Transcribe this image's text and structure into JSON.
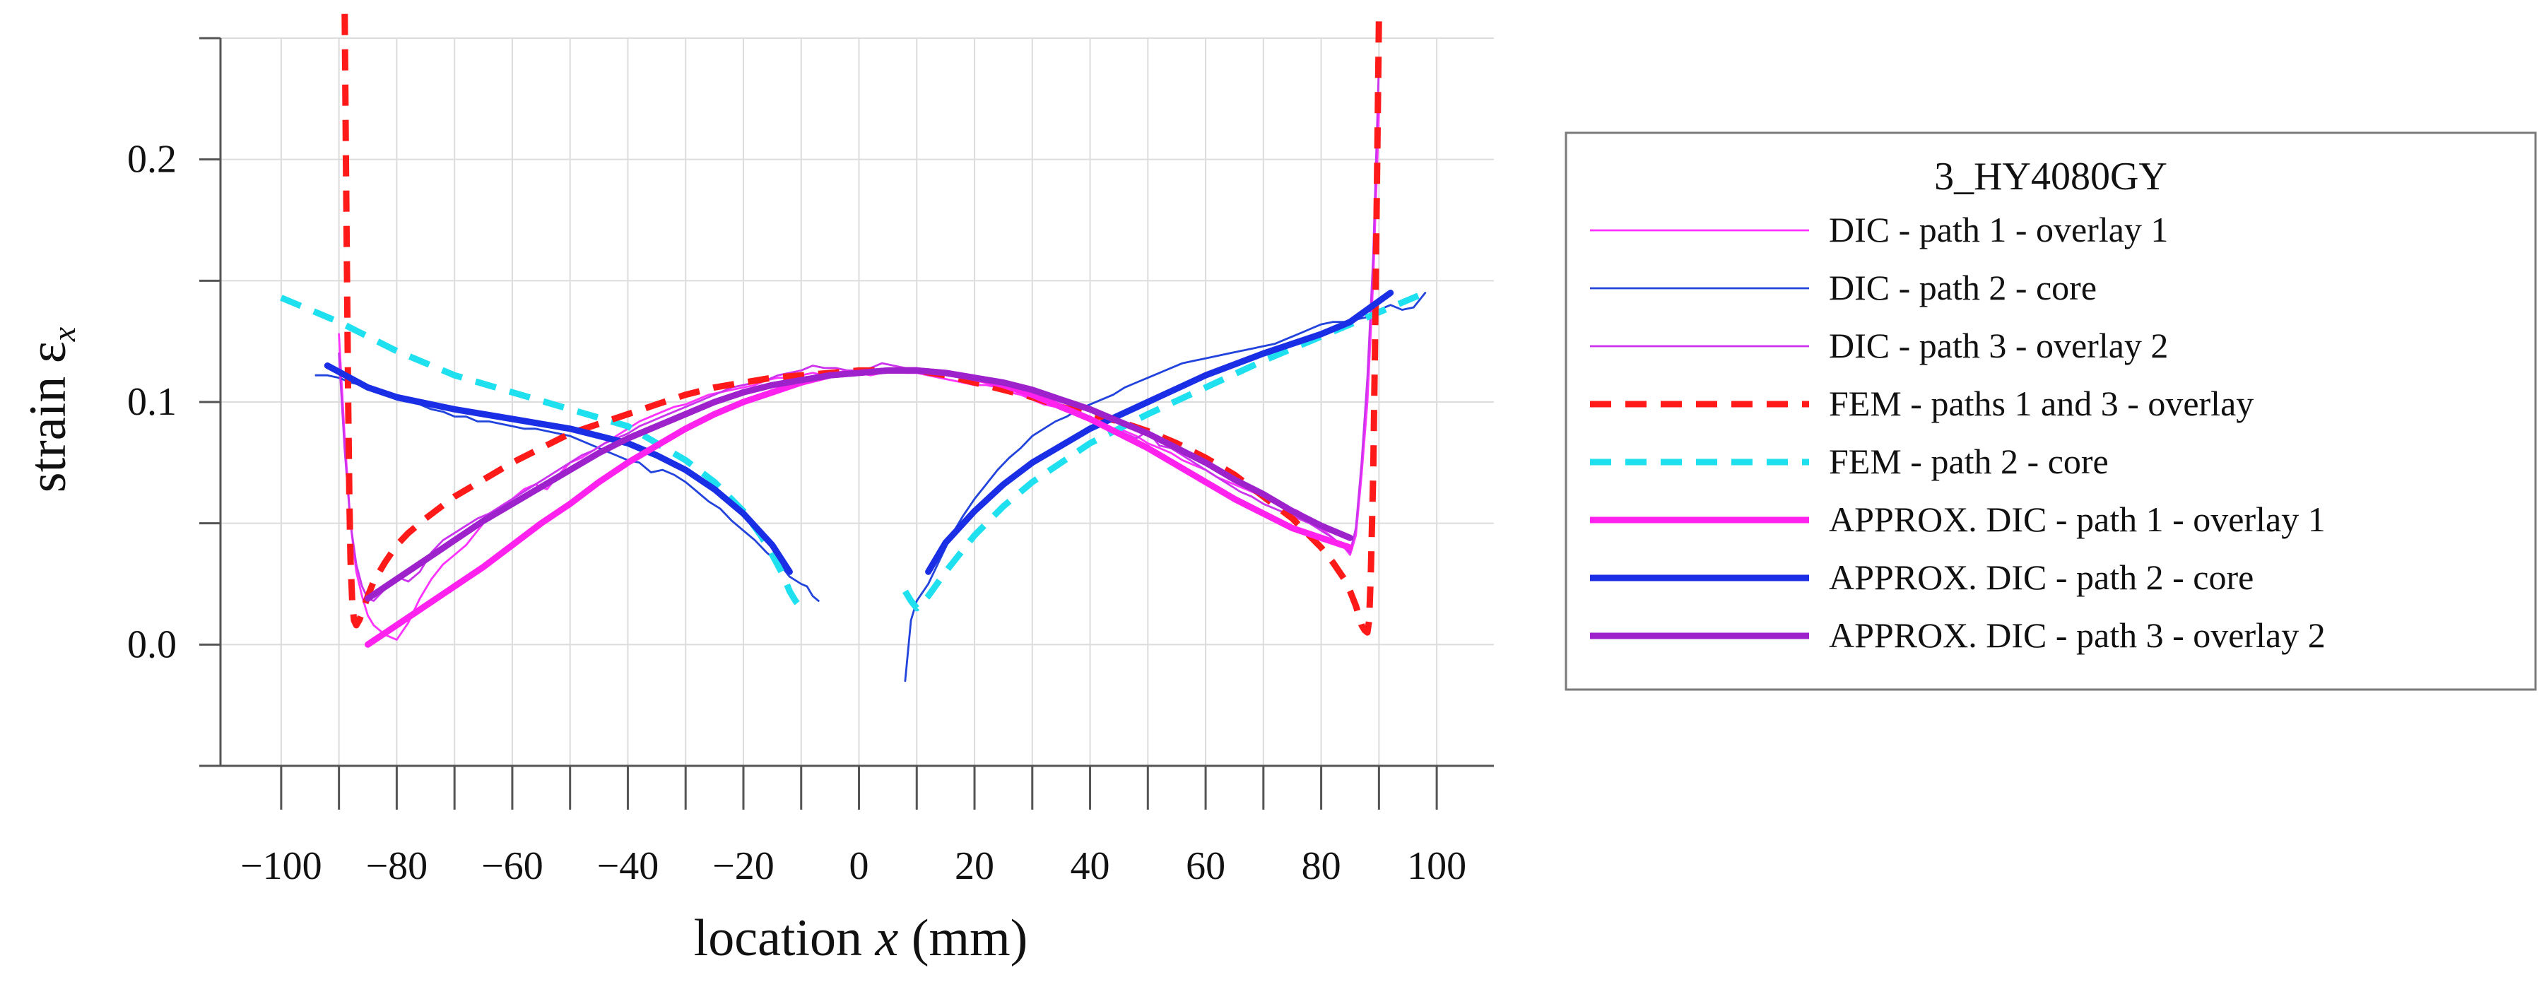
{
  "chart_data": {
    "type": "line",
    "title": "",
    "xlabel": "location x (mm)",
    "xlabel_parts": [
      "location ",
      "x",
      " (mm)"
    ],
    "ylabel": "strain εx",
    "ylabel_parts": [
      "strain ε",
      "x"
    ],
    "xlim": [
      -105,
      105
    ],
    "ylim": [
      -0.05,
      0.25
    ],
    "xticks": [
      -100,
      -80,
      -60,
      -40,
      -20,
      0,
      20,
      40,
      60,
      80,
      100
    ],
    "xtick_labels": [
      "−100",
      "−80",
      "−60",
      "−40",
      "−20",
      "0",
      "20",
      "40",
      "60",
      "80",
      "100"
    ],
    "yticks": [
      0.0,
      0.1,
      0.2
    ],
    "ytick_labels": [
      "0.0",
      "0.1",
      "0.2"
    ],
    "grid": true,
    "legend": {
      "position": "right",
      "title": "3_HY4080GY",
      "entries": [
        "DIC - path 1 - overlay 1",
        "DIC -  path 2 - core",
        "DIC - path 3 -  overlay 2",
        "FEM - paths 1 and 3 - overlay",
        "FEM -  path 2 - core",
        "APPROX. DIC - path 1 - overlay 1",
        "APPROX. DIC -  path 2 - core",
        "APPROX. DIC - path 3 -  overlay 2"
      ]
    },
    "series": [
      {
        "name": "DIC - path 1 - overlay 1",
        "color": "#ff33ff",
        "style": "thin",
        "x": [
          -90,
          -89,
          -88,
          -87,
          -86,
          -85,
          -84,
          -82,
          -80,
          -78,
          -76,
          -74,
          -72,
          -70,
          -68,
          -66,
          -64,
          -62,
          -60,
          -58,
          -56,
          -54,
          -52,
          -50,
          -48,
          -46,
          -44,
          -42,
          -40,
          -38,
          -36,
          -34,
          -32,
          -30,
          -28,
          -26,
          -24,
          -22,
          -20,
          -18,
          -16,
          -14,
          -12,
          -10,
          -8,
          -6,
          -4,
          -2,
          0,
          2,
          4,
          6,
          8,
          10,
          12,
          14,
          16,
          18,
          20,
          22,
          24,
          26,
          28,
          30,
          32,
          34,
          36,
          38,
          40,
          42,
          44,
          46,
          48,
          50,
          52,
          54,
          56,
          58,
          60,
          62,
          64,
          66,
          68,
          70,
          72,
          74,
          76,
          78,
          80,
          82,
          84,
          85,
          86,
          87,
          88,
          89,
          90
        ],
        "y": [
          0.128,
          0.085,
          0.05,
          0.03,
          0.02,
          0.012,
          0.008,
          0.004,
          0.002,
          0.009,
          0.019,
          0.027,
          0.033,
          0.037,
          0.041,
          0.047,
          0.053,
          0.057,
          0.06,
          0.064,
          0.066,
          0.064,
          0.07,
          0.075,
          0.077,
          0.08,
          0.083,
          0.086,
          0.089,
          0.092,
          0.094,
          0.096,
          0.098,
          0.099,
          0.101,
          0.103,
          0.104,
          0.105,
          0.106,
          0.107,
          0.109,
          0.11,
          0.11,
          0.111,
          0.112,
          0.111,
          0.112,
          0.113,
          0.112,
          0.111,
          0.112,
          0.113,
          0.112,
          0.112,
          0.111,
          0.11,
          0.109,
          0.108,
          0.107,
          0.107,
          0.106,
          0.104,
          0.103,
          0.101,
          0.099,
          0.098,
          0.096,
          0.095,
          0.093,
          0.09,
          0.089,
          0.088,
          0.086,
          0.083,
          0.081,
          0.079,
          0.076,
          0.074,
          0.072,
          0.069,
          0.067,
          0.065,
          0.063,
          0.061,
          0.059,
          0.057,
          0.055,
          0.052,
          0.048,
          0.044,
          0.04,
          0.037,
          0.045,
          0.07,
          0.1,
          0.15,
          0.22
        ]
      },
      {
        "name": "DIC -  path 2 - core",
        "color": "#2244dd",
        "style": "thin",
        "x": [
          -94,
          -92,
          -90,
          -88,
          -86,
          -84,
          -82,
          -80,
          -78,
          -76,
          -74,
          -72,
          -70,
          -68,
          -66,
          -64,
          -62,
          -60,
          -58,
          -56,
          -54,
          -52,
          -50,
          -48,
          -46,
          -44,
          -42,
          -40,
          -38,
          -36,
          -34,
          -32,
          -30,
          -28,
          -26,
          -24,
          -22,
          -20,
          -18,
          -16,
          -14,
          -12,
          -10,
          -9,
          -8,
          -7,
          8,
          9,
          10,
          12,
          14,
          16,
          18,
          20,
          22,
          24,
          26,
          28,
          30,
          32,
          34,
          36,
          38,
          40,
          42,
          44,
          46,
          48,
          50,
          52,
          54,
          56,
          58,
          60,
          62,
          64,
          66,
          68,
          70,
          72,
          74,
          76,
          78,
          80,
          82,
          84,
          86,
          88,
          90,
          92,
          94,
          96,
          98
        ],
        "y": [
          0.111,
          0.111,
          0.11,
          0.108,
          0.107,
          0.105,
          0.103,
          0.101,
          0.1,
          0.099,
          0.097,
          0.096,
          0.094,
          0.094,
          0.092,
          0.092,
          0.091,
          0.09,
          0.089,
          0.089,
          0.088,
          0.087,
          0.086,
          0.084,
          0.082,
          0.08,
          0.078,
          0.076,
          0.075,
          0.071,
          0.072,
          0.07,
          0.067,
          0.063,
          0.059,
          0.056,
          0.051,
          0.047,
          0.043,
          0.038,
          0.034,
          0.028,
          0.025,
          0.024,
          0.02,
          0.018,
          -0.015,
          0.01,
          0.018,
          0.025,
          0.035,
          0.045,
          0.053,
          0.06,
          0.066,
          0.072,
          0.077,
          0.081,
          0.086,
          0.089,
          0.092,
          0.094,
          0.097,
          0.099,
          0.101,
          0.103,
          0.106,
          0.108,
          0.11,
          0.112,
          0.114,
          0.116,
          0.117,
          0.118,
          0.119,
          0.12,
          0.121,
          0.122,
          0.123,
          0.124,
          0.126,
          0.128,
          0.13,
          0.132,
          0.133,
          0.133,
          0.134,
          0.135,
          0.138,
          0.14,
          0.138,
          0.139,
          0.145
        ]
      },
      {
        "name": "DIC - path 3 -  overlay 2",
        "color": "#cc33ee",
        "style": "thin",
        "x": [
          -90,
          -89,
          -88,
          -87,
          -86,
          -85,
          -84,
          -82,
          -80,
          -78,
          -76,
          -74,
          -72,
          -70,
          -68,
          -66,
          -64,
          -62,
          -60,
          -58,
          -56,
          -54,
          -52,
          -50,
          -48,
          -46,
          -44,
          -42,
          -40,
          -38,
          -36,
          -34,
          -32,
          -30,
          -28,
          -26,
          -24,
          -22,
          -20,
          -18,
          -16,
          -14,
          -12,
          -10,
          -8,
          -6,
          -4,
          -2,
          0,
          2,
          4,
          6,
          8,
          10,
          12,
          14,
          16,
          18,
          20,
          22,
          24,
          26,
          28,
          30,
          32,
          34,
          36,
          38,
          40,
          42,
          44,
          46,
          48,
          50,
          52,
          54,
          56,
          58,
          60,
          62,
          64,
          66,
          68,
          70,
          72,
          74,
          76,
          78,
          80,
          82,
          84,
          85,
          86,
          87,
          88,
          89,
          90
        ],
        "y": [
          0.12,
          0.08,
          0.05,
          0.033,
          0.024,
          0.019,
          0.018,
          0.023,
          0.028,
          0.026,
          0.03,
          0.038,
          0.043,
          0.046,
          0.049,
          0.052,
          0.054,
          0.057,
          0.06,
          0.063,
          0.066,
          0.069,
          0.072,
          0.075,
          0.078,
          0.08,
          0.083,
          0.085,
          0.087,
          0.09,
          0.092,
          0.094,
          0.096,
          0.098,
          0.1,
          0.102,
          0.104,
          0.106,
          0.107,
          0.108,
          0.109,
          0.111,
          0.112,
          0.113,
          0.115,
          0.114,
          0.114,
          0.113,
          0.113,
          0.114,
          0.116,
          0.115,
          0.114,
          0.114,
          0.113,
          0.112,
          0.111,
          0.11,
          0.109,
          0.108,
          0.107,
          0.105,
          0.104,
          0.102,
          0.1,
          0.099,
          0.097,
          0.095,
          0.093,
          0.091,
          0.089,
          0.087,
          0.085,
          0.088,
          0.082,
          0.081,
          0.078,
          0.075,
          0.072,
          0.069,
          0.066,
          0.063,
          0.061,
          0.058,
          0.056,
          0.054,
          0.052,
          0.05,
          0.047,
          0.044,
          0.04,
          0.038,
          0.048,
          0.075,
          0.11,
          0.16,
          0.24
        ]
      },
      {
        "name": "FEM - paths 1 and 3 - overlay",
        "color": "#ff1a1a",
        "style": "dashed",
        "x": [
          -89,
          -88.8,
          -88.6,
          -88.4,
          -88.2,
          -88,
          -87.7,
          -87.4,
          -87,
          -86.5,
          -86,
          -85,
          -84,
          -82,
          -80,
          -78,
          -75,
          -70,
          -65,
          -60,
          -55,
          -50,
          -45,
          -40,
          -35,
          -30,
          -25,
          -20,
          -15,
          -10,
          -5,
          0,
          5,
          10,
          15,
          20,
          25,
          30,
          35,
          40,
          45,
          50,
          55,
          60,
          65,
          70,
          75,
          80,
          82,
          84,
          85,
          86,
          86.5,
          87,
          87.5,
          88,
          88.3,
          88.6,
          89,
          89.3,
          89.6,
          90
        ],
        "y": [
          0.26,
          0.2,
          0.15,
          0.1,
          0.06,
          0.035,
          0.018,
          0.01,
          0.008,
          0.01,
          0.013,
          0.02,
          0.026,
          0.034,
          0.041,
          0.046,
          0.052,
          0.061,
          0.068,
          0.075,
          0.081,
          0.087,
          0.091,
          0.095,
          0.099,
          0.103,
          0.106,
          0.108,
          0.11,
          0.111,
          0.112,
          0.113,
          0.113,
          0.113,
          0.111,
          0.108,
          0.105,
          0.102,
          0.098,
          0.095,
          0.092,
          0.088,
          0.083,
          0.077,
          0.07,
          0.061,
          0.052,
          0.04,
          0.034,
          0.027,
          0.022,
          0.016,
          0.012,
          0.008,
          0.006,
          0.005,
          0.01,
          0.03,
          0.07,
          0.12,
          0.18,
          0.26
        ]
      },
      {
        "name": "FEM -  path 2 - core",
        "color": "#1ee0ee",
        "style": "dashed",
        "x": [
          -100,
          -90,
          -80,
          -70,
          -60,
          -50,
          -40,
          -30,
          -25,
          -20,
          -17,
          -15,
          -13,
          -12,
          -11,
          -10,
          -9,
          8,
          9,
          10,
          12,
          15,
          20,
          25,
          30,
          40,
          50,
          60,
          70,
          80,
          90,
          98
        ],
        "y": [
          0.143,
          0.133,
          0.121,
          0.111,
          0.104,
          0.097,
          0.09,
          0.076,
          0.067,
          0.055,
          0.045,
          0.037,
          0.028,
          0.022,
          0.018,
          0.015,
          0.016,
          0.022,
          0.018,
          0.015,
          0.02,
          0.03,
          0.045,
          0.057,
          0.067,
          0.083,
          0.095,
          0.106,
          0.117,
          0.127,
          0.137,
          0.145
        ]
      },
      {
        "name": "APPROX. DIC - path 1 - overlay 1",
        "color": "#ff22ee",
        "style": "thick",
        "x": [
          -85,
          -80,
          -75,
          -70,
          -65,
          -60,
          -55,
          -50,
          -45,
          -40,
          -35,
          -30,
          -25,
          -20,
          -15,
          -10,
          -5,
          0,
          5,
          10,
          15,
          20,
          25,
          30,
          35,
          40,
          45,
          50,
          55,
          60,
          65,
          70,
          75,
          80,
          85
        ],
        "y": [
          0.0,
          0.008,
          0.016,
          0.024,
          0.032,
          0.041,
          0.05,
          0.058,
          0.067,
          0.075,
          0.082,
          0.089,
          0.095,
          0.1,
          0.104,
          0.108,
          0.111,
          0.112,
          0.113,
          0.113,
          0.112,
          0.11,
          0.107,
          0.103,
          0.098,
          0.093,
          0.087,
          0.081,
          0.074,
          0.067,
          0.06,
          0.054,
          0.048,
          0.044,
          0.04
        ]
      },
      {
        "name": "APPROX. DIC -  path 2 - core",
        "color": "#1a2ee6",
        "style": "thick",
        "x": [
          -92,
          -85,
          -80,
          -70,
          -60,
          -50,
          -40,
          -35,
          -30,
          -25,
          -20,
          -15,
          -12,
          12,
          15,
          20,
          25,
          30,
          40,
          50,
          60,
          70,
          80,
          85,
          92
        ],
        "y": [
          0.115,
          0.106,
          0.102,
          0.097,
          0.093,
          0.089,
          0.083,
          0.078,
          0.072,
          0.064,
          0.054,
          0.041,
          0.03,
          0.03,
          0.042,
          0.055,
          0.066,
          0.075,
          0.089,
          0.1,
          0.111,
          0.12,
          0.128,
          0.133,
          0.145
        ]
      },
      {
        "name": "APPROX. DIC - path 3 -  overlay 2",
        "color": "#9e22cc",
        "style": "thick",
        "x": [
          -85,
          -80,
          -75,
          -70,
          -65,
          -60,
          -55,
          -50,
          -45,
          -40,
          -35,
          -30,
          -25,
          -20,
          -15,
          -10,
          -5,
          0,
          5,
          10,
          15,
          20,
          25,
          30,
          35,
          40,
          45,
          50,
          55,
          60,
          65,
          70,
          75,
          80,
          85
        ],
        "y": [
          0.019,
          0.027,
          0.035,
          0.043,
          0.051,
          0.058,
          0.065,
          0.072,
          0.079,
          0.085,
          0.09,
          0.095,
          0.1,
          0.104,
          0.107,
          0.109,
          0.111,
          0.112,
          0.113,
          0.113,
          0.112,
          0.11,
          0.108,
          0.105,
          0.101,
          0.097,
          0.092,
          0.087,
          0.081,
          0.075,
          0.068,
          0.062,
          0.055,
          0.049,
          0.044
        ]
      }
    ]
  }
}
